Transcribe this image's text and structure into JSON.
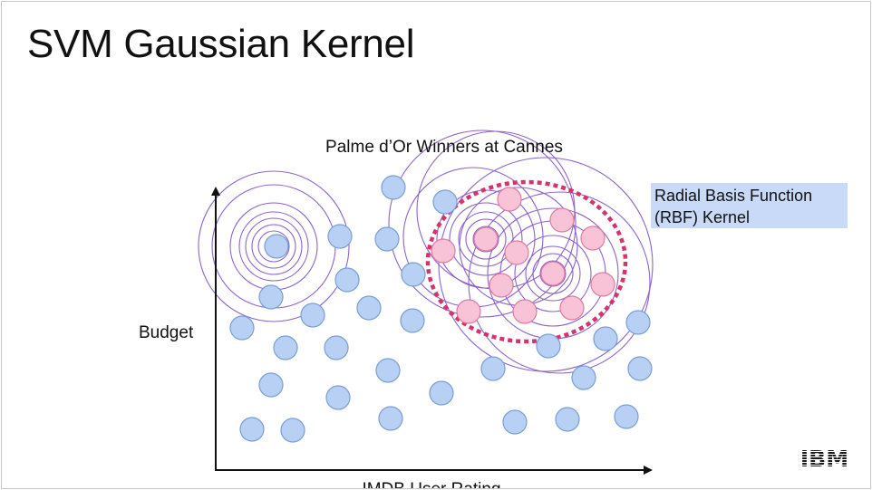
{
  "slide": {
    "title": "SVM Gaussian Kernel"
  },
  "diagram": {
    "title": "Palme d’Or Winners at Cannes",
    "xlabel": "IMDB User Rating",
    "ylabel": "Budget",
    "callout": {
      "line1": "Radial Basis Function",
      "line2": "(RBF) Kernel"
    },
    "legend_placement": "right"
  },
  "brand": {
    "logo": "IBM"
  },
  "colors": {
    "negative_fill": "#b7d0f4",
    "negative_stroke": "#7a9ed4",
    "positive_fill": "#f8c3d6",
    "positive_stroke": "#e07aa0",
    "contour": "#8e63cc",
    "boundary": "#d6336c",
    "callout_bg": "#c9daf8"
  }
}
